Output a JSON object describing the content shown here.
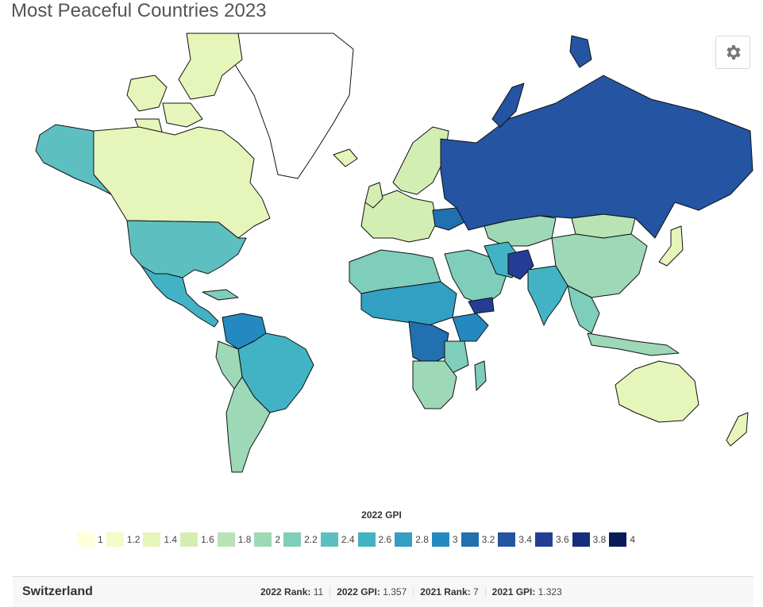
{
  "title": "Most Peaceful Countries 2023",
  "settings_icon": "gear-icon",
  "legend": {
    "title": "2022 GPI",
    "items": [
      {
        "label": "1",
        "color": "#ffffd9"
      },
      {
        "label": "1.2",
        "color": "#f4fbc5"
      },
      {
        "label": "1.4",
        "color": "#e6f5b9"
      },
      {
        "label": "1.6",
        "color": "#d3eeb3"
      },
      {
        "label": "1.8",
        "color": "#b9e3b4"
      },
      {
        "label": "2",
        "color": "#9dd8b7"
      },
      {
        "label": "2.2",
        "color": "#7fcdbb"
      },
      {
        "label": "2.4",
        "color": "#5dbfc0"
      },
      {
        "label": "2.6",
        "color": "#41b3c4"
      },
      {
        "label": "2.8",
        "color": "#31a0c3"
      },
      {
        "label": "3",
        "color": "#2389c0"
      },
      {
        "label": "3.2",
        "color": "#2170b0"
      },
      {
        "label": "3.4",
        "color": "#2454a2"
      },
      {
        "label": "3.6",
        "color": "#253d95"
      },
      {
        "label": "3.8",
        "color": "#172e7b"
      },
      {
        "label": "4",
        "color": "#081d58"
      }
    ]
  },
  "footer": {
    "country": "Switzerland",
    "rank_2022_label": "2022 Rank:",
    "rank_2022": "11",
    "gpi_2022_label": "2022 GPI:",
    "gpi_2022": "1.357",
    "rank_2021_label": "2021 Rank:",
    "rank_2021": "7",
    "gpi_2021_label": "2021 GPI:",
    "gpi_2021": "1.323"
  }
}
